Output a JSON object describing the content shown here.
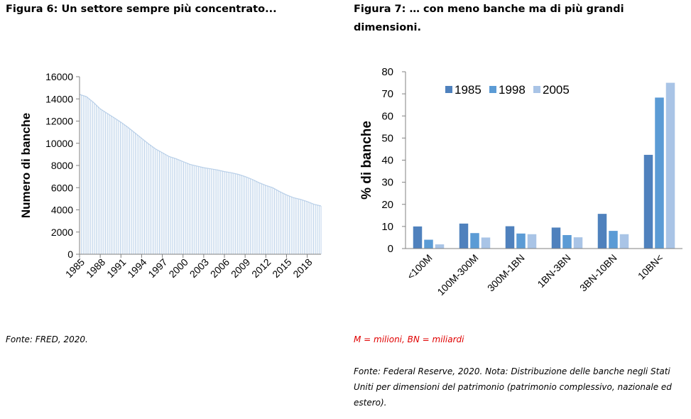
{
  "figure6": {
    "title": "Figura 6: Un settore sempre più concentrato...",
    "source": "Fonte: FRED, 2020."
  },
  "figure7": {
    "title": "Figura 7: … con meno banche ma di più grandi dimensioni.",
    "note": "M = milioni, BN = miliardi",
    "source": "Fonte: Federal Reserve, 2020. Nota: Distribuzione delle banche negli Stati Uniti per dimensioni del patrimonio (patrimonio complessivo, nazionale ed estero)."
  },
  "chart_data": [
    {
      "type": "area",
      "title": "",
      "xlabel": "",
      "ylabel": "Numero di banche",
      "ylim": [
        0,
        16000
      ],
      "yticks": [
        "0",
        "2000",
        "4000",
        "6000",
        "8000",
        "10000",
        "12000",
        "14000",
        "16000"
      ],
      "xticks": [
        "1985",
        "1988",
        "1991",
        "1994",
        "1997",
        "2000",
        "2003",
        "2006",
        "2009",
        "2012",
        "2015",
        "2018"
      ],
      "x": [
        1985,
        1986,
        1987,
        1988,
        1989,
        1990,
        1991,
        1992,
        1993,
        1994,
        1995,
        1996,
        1997,
        1998,
        1999,
        2000,
        2001,
        2002,
        2003,
        2004,
        2005,
        2006,
        2007,
        2008,
        2009,
        2010,
        2011,
        2012,
        2013,
        2014,
        2015,
        2016,
        2017,
        2018,
        2019,
        2020
      ],
      "y": [
        14400,
        14200,
        13700,
        13100,
        12700,
        12300,
        11900,
        11450,
        10950,
        10450,
        9950,
        9500,
        9150,
        8800,
        8600,
        8350,
        8100,
        7950,
        7800,
        7700,
        7600,
        7450,
        7350,
        7200,
        7000,
        6750,
        6450,
        6200,
        6000,
        5650,
        5350,
        5100,
        4950,
        4750,
        4500,
        4350
      ],
      "color": "#b8cfe8",
      "grid": false,
      "legend": "none"
    },
    {
      "type": "bar",
      "title": "",
      "xlabel": "",
      "ylabel": "% di banche",
      "ylim": [
        0,
        80
      ],
      "yticks": [
        "0",
        "10",
        "20",
        "30",
        "40",
        "50",
        "60",
        "70",
        "80"
      ],
      "categories": [
        "<100M",
        "100M-300M",
        "300M-1BN",
        "1BN-3BN",
        "3BN-10BN",
        "10BN<"
      ],
      "series": [
        {
          "name": "1985",
          "color": "#4f81bd",
          "values": [
            10,
            11.3,
            10.1,
            9.5,
            15.7,
            42.4
          ]
        },
        {
          "name": "1998",
          "color": "#5b9bd5",
          "values": [
            4,
            7,
            6.8,
            6.1,
            8,
            68.3
          ]
        },
        {
          "name": "2005",
          "color": "#a9c4e6",
          "values": [
            1.9,
            5,
            6.5,
            5.1,
            6.5,
            75
          ]
        }
      ],
      "grid": false,
      "legend": "top-center"
    }
  ]
}
